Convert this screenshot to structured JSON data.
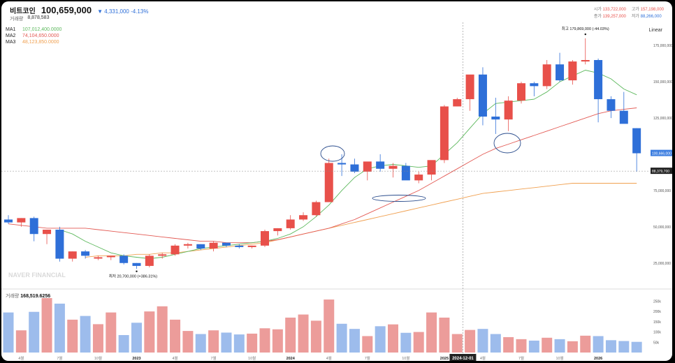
{
  "header": {
    "name": "비트코인",
    "price": "100,659,000",
    "change_arrow": "▼",
    "change_value": "4,331,000",
    "change_pct": "-4.13%",
    "volume_label": "거래량",
    "volume_value": "8,878,583",
    "open_label": "시가",
    "open_value": "133,722,000",
    "high_label": "고가",
    "high_value": "157,198,000",
    "close_label": "종가",
    "close_value": "139,257,000",
    "low_label": "저가",
    "low_value": "88,266,000"
  },
  "legend": {
    "ma1_name": "MA1",
    "ma1_value": "107,012,400.0000",
    "ma2_name": "MA2",
    "ma2_value": "74,104,650.0000",
    "ma3_name": "MA3",
    "ma3_value": "48,123,850.0000"
  },
  "scale_mode": "Linear",
  "volume_panel": {
    "label": "거래량",
    "value": "168,519.6256"
  },
  "crosshair": {
    "x_label": "2024-12-01",
    "y_label": "88,379,700"
  },
  "current_price_label": "100,666,000",
  "watermark": "NAVER FINANCIAL",
  "colors": {
    "up": "#e8504a",
    "down": "#2e6fd8",
    "ma1": "#5cb85c",
    "ma2": "#e35a54",
    "ma3": "#f0a050"
  },
  "chart_data": {
    "type": "candlestick",
    "interval": "monthly",
    "x_tick_labels": [
      "4월",
      "7월",
      "10월",
      "2023",
      "4월",
      "7월",
      "10월",
      "2024",
      "4월",
      "7월",
      "10월",
      "2025",
      "4월",
      "7월",
      "10월",
      "2026"
    ],
    "y_tick_labels": [
      "175,000,000",
      "150,000,000",
      "125,000,000",
      "100,000,000",
      "75,000,000",
      "50,000,000",
      "25,000,000"
    ],
    "y_ticks": [
      175000000,
      150000000,
      125000000,
      100000000,
      75000000,
      50000000,
      25000000
    ],
    "ylim": [
      9000000,
      191000000
    ],
    "vol_tick_labels": [
      "250k",
      "200k",
      "150k",
      "100k",
      "50k"
    ],
    "vol_ticks": [
      250000,
      200000,
      150000,
      100000,
      50000
    ],
    "vol_max": 282000,
    "annotations": {
      "high": "최고 179,869,000 (-44.03%)",
      "low": "최저 20,700,000 (+386.31%)"
    },
    "candles": [
      {
        "o": 55,
        "h": 58,
        "l": 52,
        "c": 53,
        "v": 195000
      },
      {
        "o": 53,
        "h": 56,
        "l": 50,
        "c": 56,
        "v": 108000
      },
      {
        "o": 56,
        "h": 57,
        "l": 40,
        "c": 45,
        "v": 198000
      },
      {
        "o": 45,
        "h": 48,
        "l": 38,
        "c": 48,
        "v": 265000
      },
      {
        "o": 48,
        "h": 50,
        "l": 26,
        "c": 28,
        "v": 238000
      },
      {
        "o": 28,
        "h": 33,
        "l": 26,
        "c": 33,
        "v": 160000
      },
      {
        "o": 33,
        "h": 34,
        "l": 28,
        "c": 30,
        "v": 178000
      },
      {
        "o": 29,
        "h": 30,
        "l": 27,
        "c": 29,
        "v": 138000
      },
      {
        "o": 29,
        "h": 30,
        "l": 27,
        "c": 30,
        "v": 195000
      },
      {
        "o": 30,
        "h": 31,
        "l": 24,
        "c": 25,
        "v": 85000
      },
      {
        "o": 25,
        "h": 25,
        "l": 21,
        "c": 23,
        "v": 145000
      },
      {
        "o": 23,
        "h": 31,
        "l": 22,
        "c": 30,
        "v": 200000
      },
      {
        "o": 30,
        "h": 32,
        "l": 28,
        "c": 31,
        "v": 225000
      },
      {
        "o": 31,
        "h": 38,
        "l": 30,
        "c": 37,
        "v": 160000
      },
      {
        "o": 37,
        "h": 39,
        "l": 35,
        "c": 38,
        "v": 105000
      },
      {
        "o": 38,
        "h": 38,
        "l": 34,
        "c": 35,
        "v": 90000
      },
      {
        "o": 35,
        "h": 40,
        "l": 33,
        "c": 39,
        "v": 108000
      },
      {
        "o": 39,
        "h": 39,
        "l": 36,
        "c": 37,
        "v": 97000
      },
      {
        "o": 37,
        "h": 38,
        "l": 35,
        "c": 36,
        "v": 88000
      },
      {
        "o": 36,
        "h": 37,
        "l": 35,
        "c": 37,
        "v": 92000
      },
      {
        "o": 37,
        "h": 48,
        "l": 36,
        "c": 47,
        "v": 118000
      },
      {
        "o": 47,
        "h": 49,
        "l": 44,
        "c": 49,
        "v": 113000
      },
      {
        "o": 49,
        "h": 58,
        "l": 48,
        "c": 55,
        "v": 170000
      },
      {
        "o": 55,
        "h": 60,
        "l": 54,
        "c": 58,
        "v": 185000
      },
      {
        "o": 58,
        "h": 68,
        "l": 57,
        "c": 67,
        "v": 155000
      },
      {
        "o": 67,
        "h": 97,
        "l": 67,
        "c": 94,
        "v": 258000
      },
      {
        "o": 94,
        "h": 100,
        "l": 85,
        "c": 93,
        "v": 140000
      },
      {
        "o": 93,
        "h": 97,
        "l": 87,
        "c": 88,
        "v": 115000
      },
      {
        "o": 88,
        "h": 92,
        "l": 82,
        "c": 95,
        "v": 80000
      },
      {
        "o": 95,
        "h": 100,
        "l": 88,
        "c": 90,
        "v": 128000
      },
      {
        "o": 90,
        "h": 94,
        "l": 84,
        "c": 92,
        "v": 137000
      },
      {
        "o": 92,
        "h": 94,
        "l": 86,
        "c": 82,
        "v": 96000
      },
      {
        "o": 82,
        "h": 88,
        "l": 80,
        "c": 86,
        "v": 100000
      },
      {
        "o": 86,
        "h": 95,
        "l": 82,
        "c": 96,
        "v": 195000
      },
      {
        "o": 96,
        "h": 134,
        "l": 94,
        "c": 133,
        "v": 170000
      },
      {
        "o": 133,
        "h": 139,
        "l": 133,
        "c": 138,
        "v": 90000
      },
      {
        "o": 138,
        "h": 153,
        "l": 130,
        "c": 155,
        "v": 110000
      },
      {
        "o": 155,
        "h": 160,
        "l": 120,
        "c": 126,
        "v": 115000
      },
      {
        "o": 126,
        "h": 139,
        "l": 114,
        "c": 124,
        "v": 90000
      },
      {
        "o": 124,
        "h": 140,
        "l": 116,
        "c": 137,
        "v": 75000
      },
      {
        "o": 137,
        "h": 150,
        "l": 135,
        "c": 149,
        "v": 65000
      },
      {
        "o": 149,
        "h": 150,
        "l": 140,
        "c": 147,
        "v": 58000
      },
      {
        "o": 147,
        "h": 165,
        "l": 145,
        "c": 162,
        "v": 72000
      },
      {
        "o": 162,
        "h": 170,
        "l": 150,
        "c": 151,
        "v": 65000
      },
      {
        "o": 151,
        "h": 165,
        "l": 148,
        "c": 164,
        "v": 55000
      },
      {
        "o": 164,
        "h": 180,
        "l": 162,
        "c": 165,
        "v": 82000
      },
      {
        "o": 165,
        "h": 166,
        "l": 122,
        "c": 138,
        "v": 80000
      },
      {
        "o": 138,
        "h": 140,
        "l": 125,
        "c": 130,
        "v": 60000
      },
      {
        "o": 130,
        "h": 143,
        "l": 125,
        "c": 121,
        "v": 56000
      },
      {
        "o": 118,
        "h": 118,
        "l": 88,
        "c": 100.7,
        "v": 52000
      }
    ],
    "ma_series": {
      "ma1": [
        58,
        56,
        54,
        51,
        48,
        45,
        40,
        36,
        32,
        30,
        29,
        28,
        29,
        31,
        33,
        35,
        36,
        37,
        38,
        39,
        40,
        42,
        45,
        50,
        57,
        65,
        75,
        84,
        90,
        92,
        93,
        92,
        91,
        92,
        100,
        108,
        118,
        128,
        135,
        136,
        137,
        138,
        143,
        150,
        154,
        158,
        156,
        152,
        145,
        141
      ],
      "ma2": [
        52,
        51,
        50,
        49,
        49,
        49,
        49,
        48,
        47,
        46,
        45,
        44,
        43,
        42,
        41,
        40,
        40,
        39,
        39,
        39,
        40,
        41,
        43,
        45,
        47,
        49,
        52,
        55,
        59,
        63,
        67,
        71,
        75,
        80,
        85,
        90,
        95,
        100,
        104,
        107,
        110,
        113,
        116,
        119,
        122,
        125,
        128,
        130,
        131,
        132
      ],
      "ma3": [
        27,
        27,
        28,
        28,
        28,
        29,
        29,
        30,
        30,
        30,
        31,
        31,
        32,
        32,
        33,
        34,
        35,
        36,
        37,
        38,
        39,
        41,
        43,
        45,
        47,
        49,
        51,
        53,
        55,
        57,
        59,
        61,
        63,
        65,
        67,
        69,
        71,
        73,
        74,
        75,
        76,
        77,
        78,
        79,
        80,
        80,
        80,
        80,
        80,
        80
      ]
    }
  }
}
